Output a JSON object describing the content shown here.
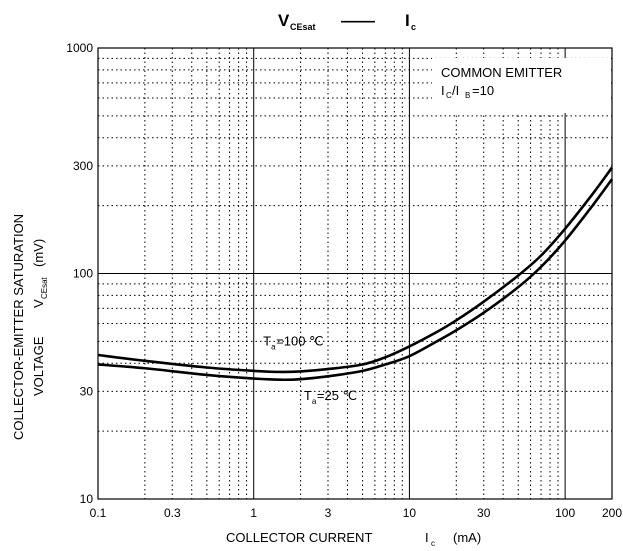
{
  "chart_data": {
    "type": "line",
    "title": {
      "left_main": "V",
      "left_sub": "CEsat",
      "dash": "——",
      "right_main": "I",
      "right_sub": "c"
    },
    "xlabel": {
      "text": "COLLECTOR CURRENT",
      "symbol": "I",
      "symbol_sub": "c",
      "unit": "(mA)"
    },
    "ylabel": {
      "line1": "COLLECTOR-EMITTER SATURATION",
      "line2_text": "VOLTAGE",
      "symbol": "V",
      "symbol_sub": "CEsat",
      "unit": "(mV)"
    },
    "x_scale": "log",
    "y_scale": "log",
    "xlim": [
      0.1,
      200
    ],
    "ylim": [
      10,
      1000
    ],
    "x_ticks": [
      {
        "value": 0.1,
        "label": "0.1"
      },
      {
        "value": 0.3,
        "label": "0.3"
      },
      {
        "value": 1,
        "label": "1"
      },
      {
        "value": 3,
        "label": "3"
      },
      {
        "value": 10,
        "label": "10"
      },
      {
        "value": 30,
        "label": "30"
      },
      {
        "value": 100,
        "label": "100"
      },
      {
        "value": 200,
        "label": "200"
      }
    ],
    "y_ticks": [
      {
        "value": 10,
        "label": "10"
      },
      {
        "value": 30,
        "label": "30"
      },
      {
        "value": 100,
        "label": "100"
      },
      {
        "value": 300,
        "label": "300"
      },
      {
        "value": 1000,
        "label": "1000"
      }
    ],
    "grid": true,
    "legend_box": {
      "line1": "COMMON EMITTER",
      "line2_a": "I",
      "line2_a_sub": "C",
      "line2_sep": "/I",
      "line2_b_sub": "B",
      "line2_end": "=10"
    },
    "series": [
      {
        "label_main": "T",
        "label_sub": "a",
        "label_end": "=100 ℃",
        "label_at": {
          "x": 1.15,
          "y": 48
        },
        "x": [
          0.1,
          0.2,
          0.5,
          1,
          1.5,
          2,
          3,
          5,
          7,
          10,
          15,
          20,
          30,
          50,
          70,
          100,
          150,
          200
        ],
        "y": [
          43.5,
          41,
          38.3,
          37,
          36.6,
          36.8,
          37.7,
          39.5,
          42.5,
          47.5,
          55,
          62,
          75,
          98,
          120,
          158,
          225,
          295
        ]
      },
      {
        "label_main": "T",
        "label_sub": "a",
        "label_end": "=25 ℃",
        "label_at": {
          "x": 2.1,
          "y": 27.5
        },
        "x": [
          0.1,
          0.2,
          0.5,
          1,
          1.5,
          2,
          3,
          5,
          7,
          10,
          15,
          20,
          30,
          50,
          70,
          100,
          150,
          200
        ],
        "y": [
          39.5,
          38,
          35.5,
          34.2,
          33.8,
          34,
          35,
          37,
          39.5,
          43,
          50,
          56,
          67,
          87,
          107,
          140,
          200,
          262
        ]
      }
    ]
  }
}
